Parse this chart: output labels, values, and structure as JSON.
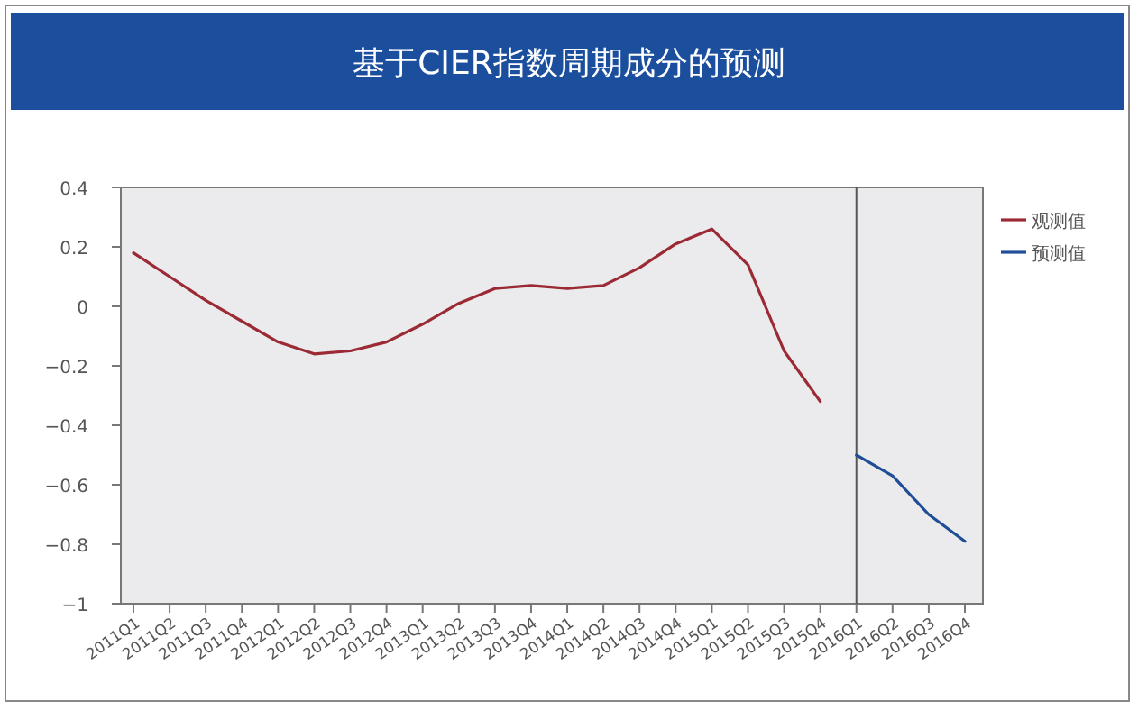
{
  "chart_data": {
    "type": "line",
    "title": "基于CIER指数周期成分的预测",
    "categories": [
      "2011Q1",
      "2011Q2",
      "2011Q3",
      "2011Q4",
      "2012Q1",
      "2012Q2",
      "2012Q3",
      "2012Q4",
      "2013Q1",
      "2013Q2",
      "2013Q3",
      "2013Q4",
      "2014Q1",
      "2014Q2",
      "2014Q3",
      "2014Q4",
      "2015Q1",
      "2015Q2",
      "2015Q3",
      "2015Q4",
      "2016Q1",
      "2016Q2",
      "2016Q3",
      "2016Q4"
    ],
    "series": [
      {
        "name": "观测值",
        "color": "#9b2a35",
        "values": [
          0.18,
          0.1,
          0.02,
          -0.05,
          -0.12,
          -0.16,
          -0.15,
          -0.12,
          -0.06,
          0.01,
          0.06,
          0.07,
          0.06,
          0.07,
          0.13,
          0.21,
          0.26,
          0.14,
          -0.15,
          -0.32,
          null,
          null,
          null,
          null
        ]
      },
      {
        "name": "预测值",
        "color": "#1f4e96",
        "values": [
          null,
          null,
          null,
          null,
          null,
          null,
          null,
          null,
          null,
          null,
          null,
          null,
          null,
          null,
          null,
          null,
          null,
          null,
          null,
          null,
          -0.5,
          -0.57,
          -0.7,
          -0.79
        ]
      }
    ],
    "ylim": [
      -1,
      0.4
    ],
    "yticks": [
      {
        "value": -1,
        "label": "−1"
      },
      {
        "value": -0.8,
        "label": "−0.8"
      },
      {
        "value": -0.6,
        "label": "−0.6"
      },
      {
        "value": -0.4,
        "label": "−0.4"
      },
      {
        "value": -0.2,
        "label": "−0.2"
      },
      0,
      0.2,
      0.4
    ],
    "ref_lines": [
      {
        "axis": "x",
        "value": "2016Q1",
        "color": "#555555"
      }
    ],
    "grid": false,
    "legend": "top right",
    "marker": "none",
    "line_style": "solid"
  }
}
